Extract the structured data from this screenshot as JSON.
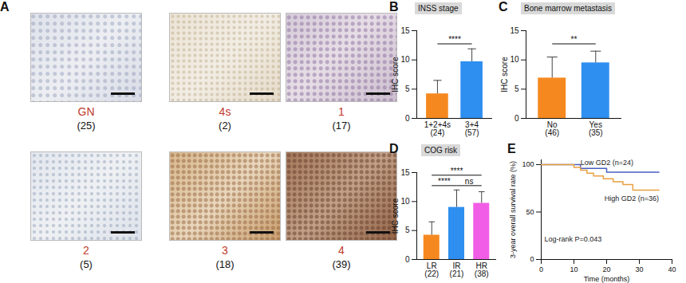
{
  "chart_data": [
    {
      "panel": "A",
      "type": "micrograph",
      "color": "#c0392b",
      "images": [
        {
          "label": "GN",
          "count_label": "(25)"
        },
        {
          "label": "4s",
          "count_label": "(2)"
        },
        {
          "label": "1",
          "count_label": "(17)"
        },
        {
          "label": "2",
          "count_label": "(5)"
        },
        {
          "label": "3",
          "count_label": "(18)"
        },
        {
          "label": "4",
          "count_label": "(39)"
        }
      ]
    },
    {
      "panel": "B",
      "type": "bar",
      "title": "INSS stage",
      "y_label": "IHC score",
      "categories": [
        "1+2+4s",
        "3+4"
      ],
      "count_labels": [
        "(24)",
        "(57)"
      ],
      "values": [
        4.2,
        9.7
      ],
      "errors": [
        2.3,
        2.2
      ],
      "colors": [
        "#f5891f",
        "#2e8ff0"
      ],
      "ylim": [
        0,
        15
      ],
      "yticks": [
        0,
        5,
        10,
        15
      ],
      "annotations": [
        {
          "text": "****",
          "between": [
            "1+2+4s",
            "3+4"
          ]
        }
      ]
    },
    {
      "panel": "C",
      "type": "bar",
      "title": "Bone marrow metastasis",
      "y_label": "IHC score",
      "categories": [
        "No",
        "Yes"
      ],
      "count_labels": [
        "(46)",
        "(35)"
      ],
      "values": [
        6.9,
        9.5
      ],
      "errors": [
        3.6,
        2.0
      ],
      "colors": [
        "#f5891f",
        "#2e8ff0"
      ],
      "ylim": [
        0,
        15
      ],
      "yticks": [
        0,
        5,
        10,
        15
      ],
      "annotations": [
        {
          "text": "**",
          "between": [
            "No",
            "Yes"
          ]
        }
      ]
    },
    {
      "panel": "D",
      "type": "bar",
      "title": "COG risk",
      "y_label": "IHC score",
      "categories": [
        "LR",
        "IR",
        "HR"
      ],
      "count_labels": [
        "(22)",
        "(21)",
        "(38)"
      ],
      "values": [
        4.2,
        9.0,
        9.7
      ],
      "errors": [
        2.3,
        3.0,
        2.0
      ],
      "colors": [
        "#f5891f",
        "#2e8ff0",
        "#f25de6"
      ],
      "ylim": [
        0,
        15
      ],
      "yticks": [
        0,
        5,
        10,
        15
      ],
      "annotations": [
        {
          "text": "****",
          "between": [
            "LR",
            "IR"
          ]
        },
        {
          "text": "****",
          "between": [
            "LR",
            "HR"
          ]
        },
        {
          "text": "ns",
          "between": [
            "IR",
            "HR"
          ]
        }
      ]
    },
    {
      "panel": "E",
      "type": "line",
      "line_style": "step",
      "x_label": "Time (months)",
      "y_label": "3-year overall survival rate (%)",
      "xlim": [
        0,
        40
      ],
      "xticks": [
        0,
        10,
        20,
        30,
        40
      ],
      "ylim": [
        0,
        105
      ],
      "yticks": [
        0,
        50,
        100
      ],
      "series": [
        {
          "name": "Low GD2 (n=24)",
          "color": "#4a5fc1",
          "x": [
            0,
            12,
            20,
            36
          ],
          "values": [
            100,
            96,
            92,
            92
          ]
        },
        {
          "name": "High GD2 (n=36)",
          "color": "#e8a040",
          "x": [
            0,
            10,
            12,
            14,
            16,
            19,
            22,
            25,
            28,
            36
          ],
          "values": [
            100,
            97,
            94,
            91,
            88,
            85,
            82,
            79,
            73,
            73
          ]
        }
      ],
      "annotations": [
        {
          "text": "Log-rank P=0.043"
        }
      ]
    }
  ]
}
